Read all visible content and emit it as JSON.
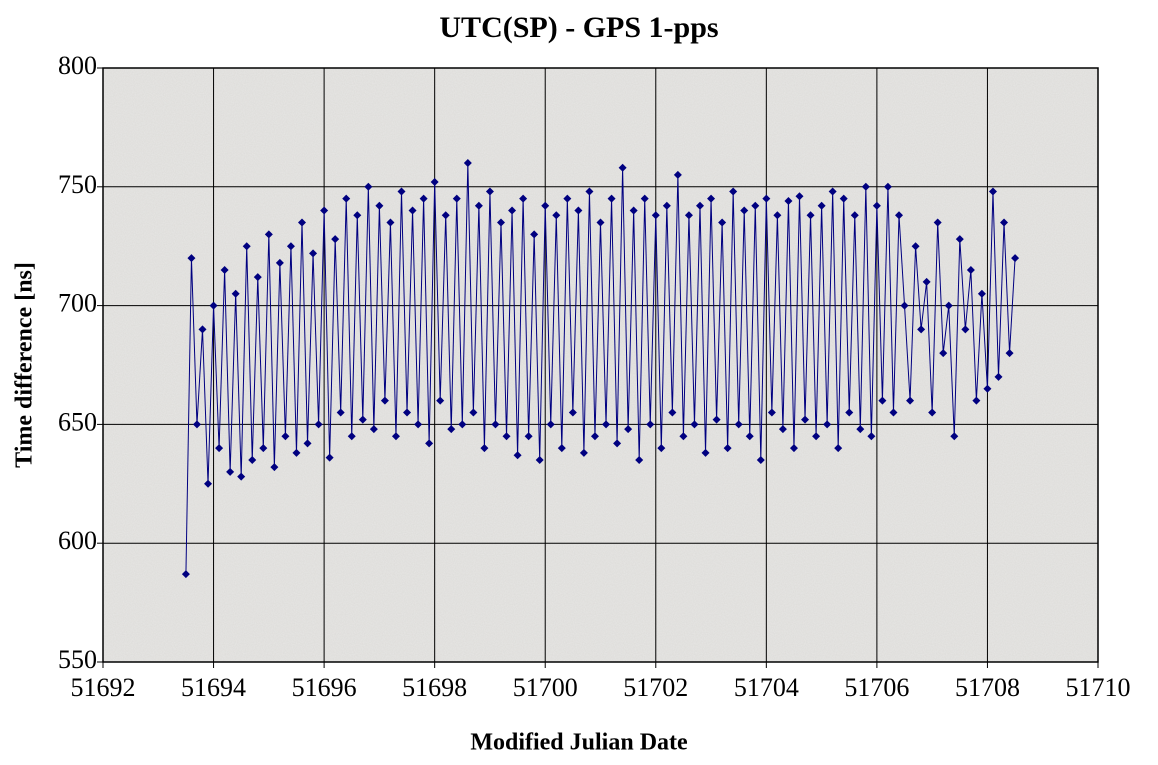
{
  "chart_data": {
    "type": "line",
    "title": "UTC(SP) - GPS 1-pps",
    "x_label": "Modified Julian Date",
    "y_label": "Time difference [ns]",
    "xlim": [
      51692,
      51710
    ],
    "xticks": [
      51692,
      51694,
      51696,
      51698,
      51700,
      51702,
      51704,
      51706,
      51708,
      51710
    ],
    "ylim": [
      550,
      800
    ],
    "yticks": [
      550,
      600,
      650,
      700,
      750,
      800
    ],
    "grid": true,
    "series": [
      {
        "color": "#000080",
        "x": [
          51693.5,
          51693.6,
          51693.7,
          51693.8,
          51693.9,
          51694,
          51694.1,
          51694.2,
          51694.3,
          51694.4,
          51694.5,
          51694.6,
          51694.7,
          51694.8,
          51694.9,
          51695,
          51695.1,
          51695.2,
          51695.3,
          51695.4,
          51695.5,
          51695.6,
          51695.7,
          51695.8,
          51695.9,
          51696,
          51696.1,
          51696.2,
          51696.3,
          51696.4,
          51696.5,
          51696.6,
          51696.7,
          51696.8,
          51696.9,
          51697,
          51697.1,
          51697.2,
          51697.3,
          51697.4,
          51697.5,
          51697.6,
          51697.7,
          51697.8,
          51697.9,
          51698,
          51698.1,
          51698.2,
          51698.3,
          51698.4,
          51698.5,
          51698.6,
          51698.7,
          51698.8,
          51698.9,
          51699,
          51699.1,
          51699.2,
          51699.3,
          51699.4,
          51699.5,
          51699.6,
          51699.7,
          51699.8,
          51699.9,
          51700,
          51700.1,
          51700.2,
          51700.3,
          51700.4,
          51700.5,
          51700.6,
          51700.7,
          51700.8,
          51700.9,
          51701,
          51701.1,
          51701.2,
          51701.3,
          51701.4,
          51701.5,
          51701.6,
          51701.7,
          51701.8,
          51701.9,
          51702,
          51702.1,
          51702.2,
          51702.3,
          51702.4,
          51702.5,
          51702.6,
          51702.7,
          51702.8,
          51702.9,
          51703,
          51703.1,
          51703.2,
          51703.3,
          51703.4,
          51703.5,
          51703.6,
          51703.7,
          51703.8,
          51703.9,
          51704,
          51704.1,
          51704.2,
          51704.3,
          51704.4,
          51704.5,
          51704.6,
          51704.7,
          51704.8,
          51704.9,
          51705,
          51705.1,
          51705.2,
          51705.3,
          51705.4,
          51705.5,
          51705.6,
          51705.7,
          51705.8,
          51705.9,
          51706,
          51706.1,
          51706.2,
          51706.3,
          51706.4,
          51706.5,
          51706.6,
          51706.7,
          51706.8,
          51706.9,
          51707,
          51707.1,
          51707.2,
          51707.3,
          51707.4,
          51707.5,
          51707.6,
          51707.7,
          51707.8,
          51707.9,
          51708,
          51708.1,
          51708.2,
          51708.3,
          51708.4,
          51708.5
        ],
        "values": [
          587,
          720,
          650,
          690,
          625,
          700,
          640,
          715,
          630,
          705,
          628,
          725,
          635,
          712,
          640,
          730,
          632,
          718,
          645,
          725,
          638,
          735,
          642,
          722,
          650,
          740,
          636,
          728,
          655,
          745,
          645,
          738,
          652,
          750,
          648,
          742,
          660,
          735,
          645,
          748,
          655,
          740,
          650,
          745,
          642,
          752,
          660,
          738,
          648,
          745,
          650,
          760,
          655,
          742,
          640,
          748,
          650,
          735,
          645,
          740,
          637,
          745,
          645,
          730,
          635,
          742,
          650,
          738,
          640,
          745,
          655,
          740,
          638,
          748,
          645,
          735,
          650,
          745,
          642,
          758,
          648,
          740,
          635,
          745,
          650,
          738,
          640,
          742,
          655,
          755,
          645,
          738,
          650,
          742,
          638,
          745,
          652,
          735,
          640,
          748,
          650,
          740,
          645,
          742,
          635,
          745,
          655,
          738,
          648,
          744,
          640,
          746,
          652,
          738,
          645,
          742,
          650,
          748,
          640,
          745,
          655,
          738,
          648,
          750,
          645,
          742,
          660,
          750,
          655,
          738,
          700,
          660,
          725,
          690,
          710,
          655,
          735,
          680,
          700,
          645,
          728,
          690,
          715,
          660,
          705,
          665,
          748,
          670,
          735,
          680,
          720
        ]
      }
    ]
  }
}
